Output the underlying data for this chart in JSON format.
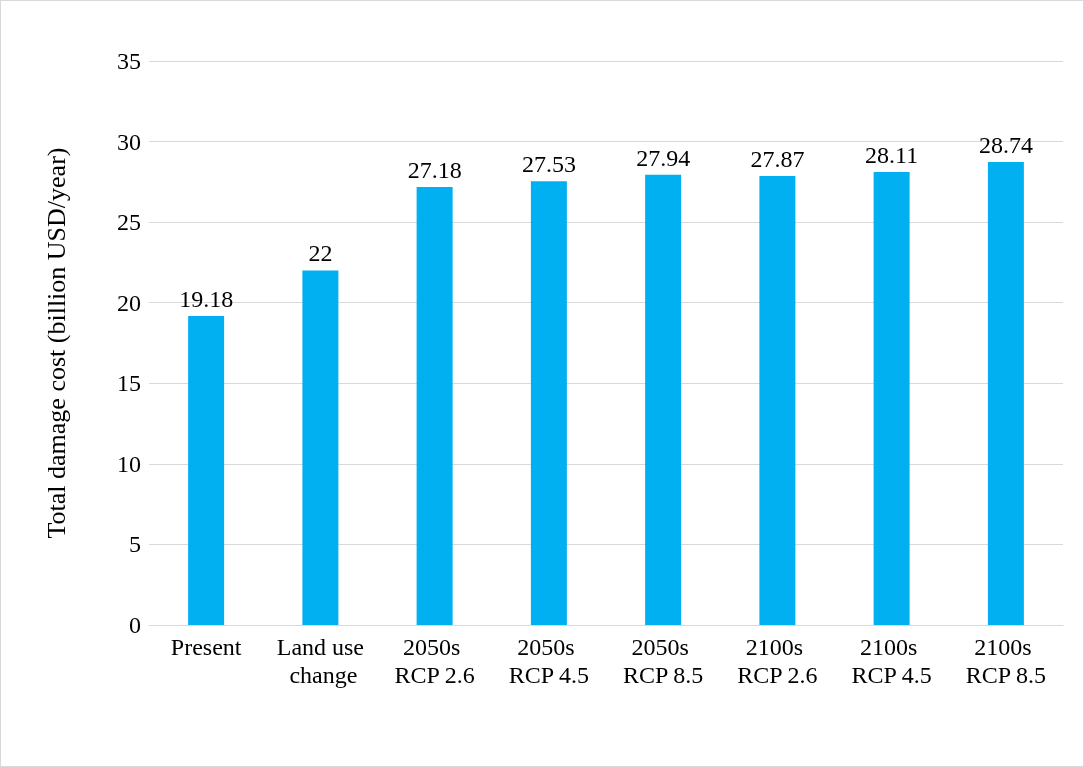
{
  "chart_data": {
    "type": "bar",
    "ylabel": "Total damage cost (billion USD/year)",
    "categories": [
      "Present",
      "Land use change",
      "2050s RCP 2.6",
      "2050s RCP 4.5",
      "2050s RCP 8.5",
      "2100s RCP 2.6",
      "2100s RCP 4.5",
      "2100s RCP 8.5"
    ],
    "values": [
      19.18,
      22,
      27.18,
      27.53,
      27.94,
      27.87,
      28.11,
      28.74
    ],
    "color": "#00b0f0",
    "ylim": [
      0,
      35
    ],
    "yticks": [
      0,
      5,
      10,
      15,
      20,
      25,
      30,
      35
    ],
    "grid": "y",
    "data_labels": true
  }
}
